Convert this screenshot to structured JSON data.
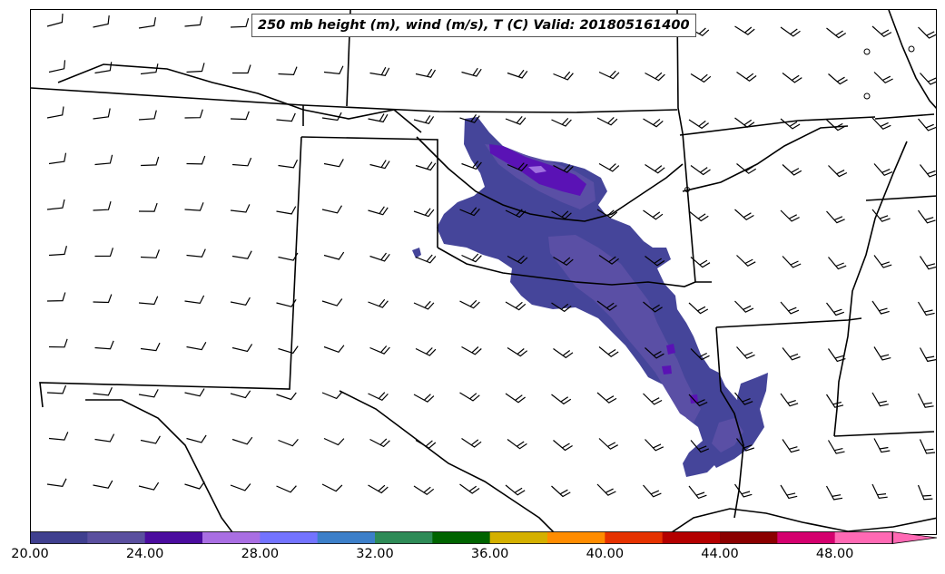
{
  "title": "250 mb height (m), wind (m/s), T (C) Valid: 201805161400",
  "colorbar": {
    "min": 20,
    "max": 50,
    "step": 2,
    "extend": "max",
    "colors": [
      "#3f3f8f",
      "#5a4f9f",
      "#4b0c9f",
      "#a96ee3",
      "#7373ff",
      "#3c7fc9",
      "#2e8b57",
      "#006400",
      "#d4b000",
      "#ff8c00",
      "#e63200",
      "#b40000",
      "#8b0000",
      "#d4006e",
      "#ff69b4"
    ],
    "tick_labels": [
      "20.00",
      "24.00",
      "28.00",
      "32.00",
      "36.00",
      "40.00",
      "44.00",
      "48.00"
    ]
  },
  "map": {
    "region": "Southern Plains / South-Central United States",
    "shaded_field_colors": [
      "#45459a",
      "#5a4fa5",
      "#5a12b5",
      "#a070e0"
    ],
    "barb_rows": 11,
    "barb_cols": 20
  }
}
